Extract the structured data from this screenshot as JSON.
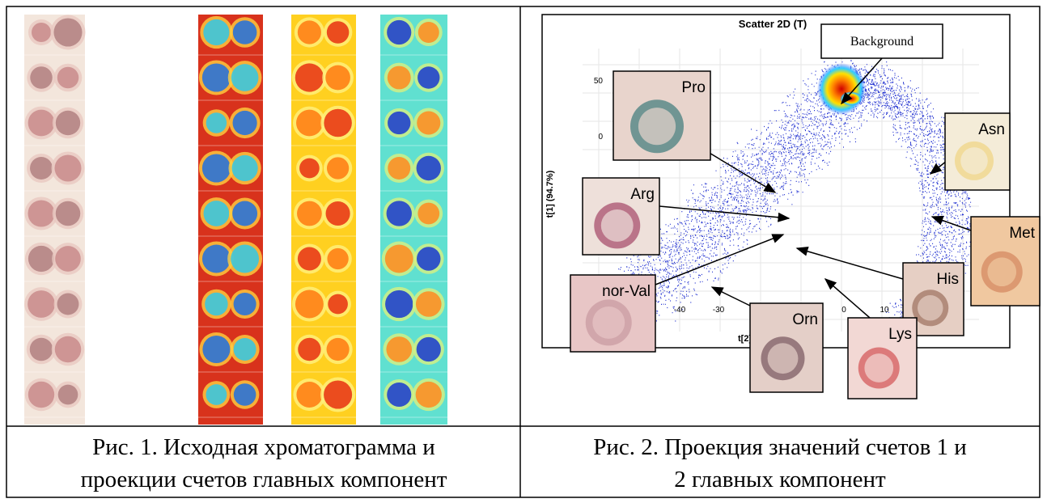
{
  "figure1": {
    "caption_lines": [
      "Рис. 1. Исходная хроматограмма и",
      "проекции счетов главных компонент"
    ]
  },
  "figure2": {
    "title": "Scatter 2D (T)",
    "y_axis_label": "t[1] (94.7%)",
    "x_axis_label": "t[2]",
    "y_ticks": [
      50,
      0
    ],
    "x_ticks": [
      -40,
      -30,
      0,
      10
    ],
    "callouts": [
      "Background",
      "Pro",
      "Asn",
      "Arg",
      "Met",
      "His",
      "nor-Val",
      "Orn",
      "Lys"
    ],
    "caption_lines": [
      "Рис. 2. Проекция значений  счетов 1 и",
      "2 главных компонент"
    ]
  }
}
